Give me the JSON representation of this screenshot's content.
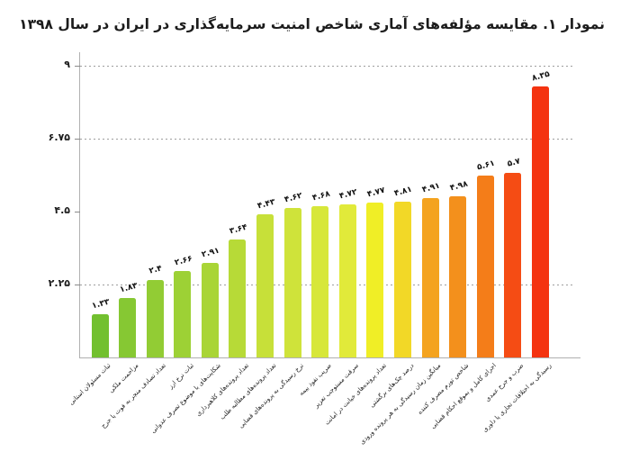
{
  "title": "نمودار ۱. مقایسه مؤلفه‌های آماری شاخص امنیت سرمایه‌گذاری در ایران در سال ۱۳۹۸",
  "chart_data": {
    "type": "bar",
    "orientation": "vertical",
    "title": "نمودار ۱. مقایسه مؤلفه‌های آماری شاخص امنیت سرمایه‌گذاری در ایران در سال ۱۳۹۸",
    "categories": [
      "ثبات مسئولان استانی",
      "مزاحمت ملکی",
      "تعداد تصادف منجر به فوت یا جرح",
      "ثبات نرخ ارز",
      "شکایت‌های با موضوع تصرف عدوانی",
      "تعداد پرونده‌های کلاهبرداری",
      "تعداد پرونده‌های مطالبه طلب",
      "نرخ رسیدگی به پرونده‌های قضایی",
      "ضریب نفوذ بیمه",
      "سرقت مستوجب تعزیر",
      "تعداد پرونده‌های خیانت در امانت",
      "درصد چک‌های برگشتی",
      "میانگین زمان رسیدگی به هر پرونده ورودی",
      "شاخص تورم مصرف کننده",
      "اجرای کامل و بموقع احکام قضایی",
      "ضرب و جرح عمدی",
      "رسیدگی به اختلافات تجاری یا داوری"
    ],
    "values": [
      1.33,
      1.83,
      2.4,
      2.66,
      2.91,
      3.64,
      4.43,
      4.62,
      4.68,
      4.72,
      4.77,
      4.81,
      4.91,
      4.98,
      5.61,
      5.7,
      8.35
    ],
    "value_labels": [
      "۱.۳۳",
      "۱.۸۳",
      "۲.۴",
      "۲.۶۶",
      "۲.۹۱",
      "۳.۶۴",
      "۴.۴۳",
      "۴.۶۲",
      "۴.۶۸",
      "۴.۷۲",
      "۴.۷۷",
      "۴.۸۱",
      "۴.۹۱",
      "۴.۹۸",
      "۵.۶۱",
      "۵.۷",
      "۸.۳۵"
    ],
    "bar_colors": [
      "#72c02f",
      "#86c833",
      "#92cc34",
      "#9dd135",
      "#a9d536",
      "#b7da37",
      "#c7e039",
      "#cfe33a",
      "#d7e73a",
      "#e1ea3a",
      "#f0ee26",
      "#f2d827",
      "#f4a31f",
      "#f3901c",
      "#f47d19",
      "#f54c14",
      "#f43310"
    ],
    "ylim": [
      0,
      9
    ],
    "yticks": [
      {
        "value": 9,
        "label": "۹"
      },
      {
        "value": 6.75,
        "label": "۶.۷۵"
      },
      {
        "value": 4.5,
        "label": "۴.۵"
      },
      {
        "value": 2.25,
        "label": "۲.۲۵"
      }
    ],
    "gridlines_at": [
      9,
      6.75,
      2.25
    ],
    "grid_style": "dotted",
    "legend": "none",
    "xlabel": "",
    "ylabel": ""
  },
  "style": {
    "title_color": "#1c1c1c",
    "axis_color": "#b0b0b0",
    "grid_color": "#9e9e9e",
    "text_color": "#1c1c1c"
  }
}
